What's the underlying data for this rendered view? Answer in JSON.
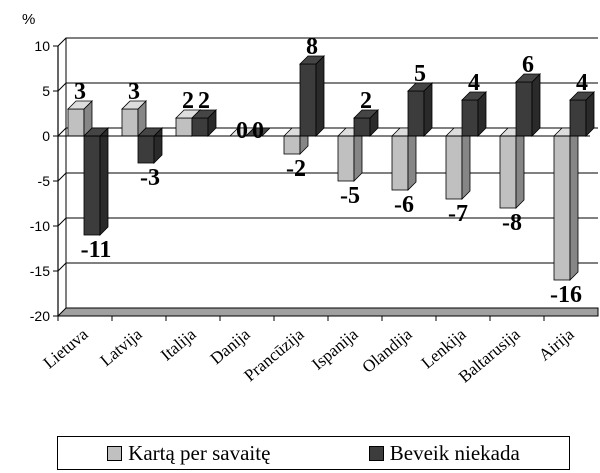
{
  "chart_data": {
    "type": "bar",
    "unit_label": "%",
    "categories": [
      "Lietuva",
      "Latvija",
      "Italija",
      "Danija",
      "Prancūzija",
      "Ispanija",
      "Olandija",
      "Lenkija",
      "Baltarusija",
      "Airija"
    ],
    "series": [
      {
        "name": "Kartą per savaitę",
        "values": [
          3,
          3,
          2,
          0,
          -2,
          -5,
          -6,
          -7,
          -8,
          -16
        ],
        "color": "#c0c0c0"
      },
      {
        "name": "Beveik niekada",
        "values": [
          -11,
          -3,
          2,
          0,
          8,
          2,
          5,
          4,
          6,
          4
        ],
        "color": "#3c3c3c"
      }
    ],
    "ylim": [
      -20,
      10
    ],
    "yticks": [
      10,
      5,
      0,
      -5,
      -10,
      -15,
      -20
    ],
    "grid": true,
    "legend_position": "bottom"
  }
}
